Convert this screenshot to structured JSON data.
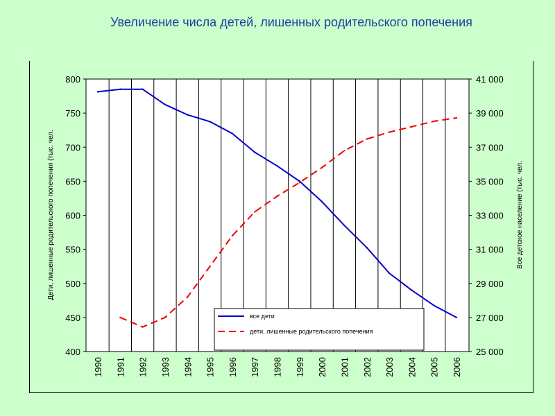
{
  "title": "Увеличение числа детей, лишенных родительского попечения",
  "chart_data": {
    "type": "line",
    "title": "Увеличение числа детей, лишенных родительского попечения",
    "categories": [
      "1990",
      "1991",
      "1992",
      "1993",
      "1994",
      "1995",
      "1996",
      "1997",
      "1998",
      "1999",
      "2000",
      "2001",
      "2002",
      "2003",
      "2004",
      "2005",
      "2006"
    ],
    "x_ticks": [
      "1990",
      "1991",
      "1992",
      "1993",
      "1994",
      "1995",
      "1996",
      "1997",
      "1998",
      "1999",
      "2000",
      "2001",
      "2002",
      "2003",
      "2004",
      "2005",
      "2006"
    ],
    "ylabel_left": "Дети, лишенные родительского попечения (тыс. чел.",
    "ylabel_right": "Все детское население (тыс. чел.",
    "ylim_left": [
      400,
      800
    ],
    "ylim_right": [
      25000,
      41000
    ],
    "yticks_left": [
      "400",
      "450",
      "500",
      "550",
      "600",
      "650",
      "700",
      "750",
      "800"
    ],
    "yticks_right": [
      "25 000",
      "27 000",
      "29 000",
      "31 000",
      "33 000",
      "35 000",
      "37 000",
      "39 000",
      "41 000"
    ],
    "grid": "vertical",
    "legend_placement": "bottom-center",
    "series": [
      {
        "name": "все дети",
        "axis": "right",
        "color": "#0000cc",
        "style": "solid",
        "values": [
          40250,
          40400,
          40400,
          39500,
          38900,
          38500,
          37800,
          36700,
          35900,
          35000,
          33800,
          32400,
          31100,
          29600,
          28600,
          27700,
          27000
        ]
      },
      {
        "name": "дети, лишенные родительского попечения",
        "axis": "left",
        "color": "#ee0000",
        "style": "dashed",
        "values": [
          null,
          450,
          436,
          450,
          480,
          525,
          570,
          605,
          628,
          648,
          670,
          695,
          712,
          722,
          730,
          738,
          743
        ]
      }
    ]
  }
}
